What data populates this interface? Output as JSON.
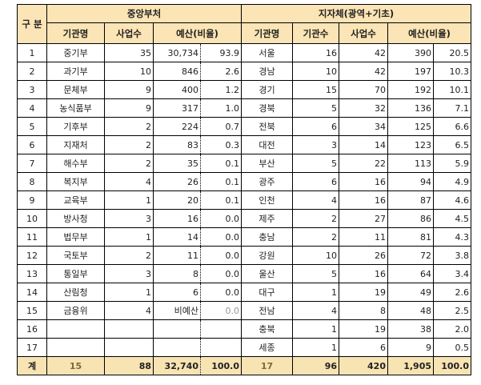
{
  "header": {
    "category": "구 분",
    "central": "중앙부처",
    "local": "지자체(광역+기초)",
    "central_cols": [
      "기관명",
      "사업수",
      "예산(비율)"
    ],
    "local_cols": [
      "기관명",
      "기관수",
      "사업수",
      "예산(비율)"
    ]
  },
  "rows": [
    {
      "no": "1",
      "c_name": "중기부",
      "c_projects": "35",
      "c_budget": "30,734",
      "c_ratio": "93.9",
      "l_name": "서울",
      "l_orgs": "16",
      "l_projects": "42",
      "l_budget": "390",
      "l_ratio": "20.5"
    },
    {
      "no": "2",
      "c_name": "과기부",
      "c_projects": "10",
      "c_budget": "846",
      "c_ratio": "2.6",
      "l_name": "경남",
      "l_orgs": "10",
      "l_projects": "42",
      "l_budget": "197",
      "l_ratio": "10.3"
    },
    {
      "no": "3",
      "c_name": "문체부",
      "c_projects": "9",
      "c_budget": "400",
      "c_ratio": "1.2",
      "l_name": "경기",
      "l_orgs": "15",
      "l_projects": "70",
      "l_budget": "192",
      "l_ratio": "10.1"
    },
    {
      "no": "4",
      "c_name": "농식품부",
      "c_projects": "9",
      "c_budget": "317",
      "c_ratio": "1.0",
      "l_name": "경북",
      "l_orgs": "5",
      "l_projects": "32",
      "l_budget": "136",
      "l_ratio": "7.1"
    },
    {
      "no": "5",
      "c_name": "기후부",
      "c_projects": "2",
      "c_budget": "224",
      "c_ratio": "0.7",
      "l_name": "전북",
      "l_orgs": "6",
      "l_projects": "34",
      "l_budget": "125",
      "l_ratio": "6.6"
    },
    {
      "no": "6",
      "c_name": "지재처",
      "c_projects": "2",
      "c_budget": "83",
      "c_ratio": "0.3",
      "l_name": "대전",
      "l_orgs": "3",
      "l_projects": "14",
      "l_budget": "123",
      "l_ratio": "6.5"
    },
    {
      "no": "7",
      "c_name": "해수부",
      "c_projects": "2",
      "c_budget": "35",
      "c_ratio": "0.1",
      "l_name": "부산",
      "l_orgs": "5",
      "l_projects": "22",
      "l_budget": "113",
      "l_ratio": "5.9"
    },
    {
      "no": "8",
      "c_name": "복지부",
      "c_projects": "4",
      "c_budget": "26",
      "c_ratio": "0.1",
      "l_name": "광주",
      "l_orgs": "6",
      "l_projects": "16",
      "l_budget": "94",
      "l_ratio": "4.9"
    },
    {
      "no": "9",
      "c_name": "교육부",
      "c_projects": "1",
      "c_budget": "20",
      "c_ratio": "0.1",
      "l_name": "인천",
      "l_orgs": "4",
      "l_projects": "16",
      "l_budget": "87",
      "l_ratio": "4.6"
    },
    {
      "no": "10",
      "c_name": "방사청",
      "c_projects": "3",
      "c_budget": "16",
      "c_ratio": "0.0",
      "l_name": "제주",
      "l_orgs": "2",
      "l_projects": "27",
      "l_budget": "86",
      "l_ratio": "4.5"
    },
    {
      "no": "11",
      "c_name": "법무부",
      "c_projects": "1",
      "c_budget": "14",
      "c_ratio": "0.0",
      "l_name": "충남",
      "l_orgs": "2",
      "l_projects": "11",
      "l_budget": "81",
      "l_ratio": "4.3"
    },
    {
      "no": "12",
      "c_name": "국토부",
      "c_projects": "2",
      "c_budget": "11",
      "c_ratio": "0.0",
      "l_name": "강원",
      "l_orgs": "10",
      "l_projects": "26",
      "l_budget": "72",
      "l_ratio": "3.8"
    },
    {
      "no": "13",
      "c_name": "통일부",
      "c_projects": "3",
      "c_budget": "8",
      "c_ratio": "0.0",
      "l_name": "울산",
      "l_orgs": "5",
      "l_projects": "16",
      "l_budget": "64",
      "l_ratio": "3.4"
    },
    {
      "no": "14",
      "c_name": "산림청",
      "c_projects": "1",
      "c_budget": "6",
      "c_ratio": "0.0",
      "l_name": "대구",
      "l_orgs": "1",
      "l_projects": "19",
      "l_budget": "49",
      "l_ratio": "2.6"
    },
    {
      "no": "15",
      "c_name": "금융위",
      "c_projects": "4",
      "c_budget": "비예산",
      "c_ratio": "0.0",
      "l_name": "전남",
      "l_orgs": "4",
      "l_projects": "8",
      "l_budget": "48",
      "l_ratio": "2.5"
    },
    {
      "no": "16",
      "c_name": "",
      "c_projects": "",
      "c_budget": "",
      "c_ratio": "",
      "l_name": "충북",
      "l_orgs": "1",
      "l_projects": "19",
      "l_budget": "38",
      "l_ratio": "2.0"
    },
    {
      "no": "17",
      "c_name": "",
      "c_projects": "",
      "c_budget": "",
      "c_ratio": "",
      "l_name": "세종",
      "l_orgs": "1",
      "l_projects": "6",
      "l_budget": "9",
      "l_ratio": "0.5"
    }
  ],
  "total": {
    "label": "계",
    "c_orgs": "15",
    "c_projects": "88",
    "c_budget": "32,740",
    "c_ratio": "100.0",
    "l_orgs": "17",
    "l_projects": "96",
    "l_budget": "420",
    "l_ratio_budget": "1,905",
    "l_ratio": "100.0"
  }
}
